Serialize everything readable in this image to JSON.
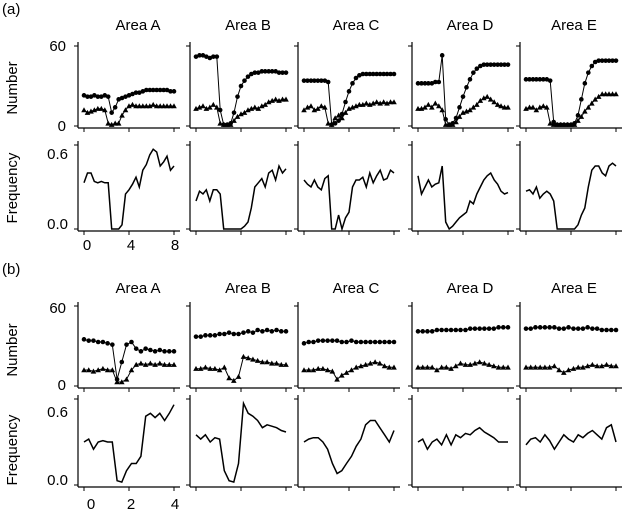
{
  "figure": {
    "panel_labels": [
      "(a)",
      "(b)"
    ],
    "areas": [
      "Area A",
      "Area B",
      "Area C",
      "Area D",
      "Area E"
    ],
    "ylabel_number": "Number",
    "ylabel_frequency": "Frequency",
    "number_ticks": [
      "60",
      "0"
    ],
    "frequency_ticks": [
      "0.6",
      "0.0"
    ],
    "x_ticks_a": [
      "0",
      "4",
      "8"
    ],
    "x_ticks_b": [
      "0",
      "2",
      "4"
    ],
    "line_color": "#000000"
  },
  "chart_data": [
    {
      "type": "line",
      "panel": "(a)",
      "row": "Number",
      "xlim": [
        0,
        8
      ],
      "ylim": [
        0,
        60
      ],
      "x": [
        0,
        0.31,
        0.62,
        0.92,
        1.23,
        1.54,
        1.85,
        2.15,
        2.46,
        2.77,
        3.08,
        3.38,
        3.69,
        4.0,
        4.31,
        4.62,
        4.92,
        5.23,
        5.54,
        5.85,
        6.15,
        6.46,
        6.77,
        7.08,
        7.38,
        7.69,
        8.0
      ],
      "panels": [
        {
          "area": "Area A",
          "series": [
            {
              "marker": "circle",
              "values": [
                23,
                22,
                22,
                23,
                22,
                22,
                23,
                22,
                10,
                14,
                20,
                21,
                22,
                23,
                24,
                25,
                25,
                26,
                27,
                27,
                27,
                27,
                27,
                27,
                27,
                26,
                26
              ]
            },
            {
              "marker": "triangle",
              "values": [
                12,
                10,
                11,
                12,
                13,
                13,
                12,
                2,
                1,
                2,
                2,
                8,
                12,
                15,
                16,
                15,
                15,
                15,
                15,
                15,
                16,
                15,
                15,
                15,
                15,
                15,
                15
              ]
            }
          ]
        },
        {
          "area": "Area B",
          "series": [
            {
              "marker": "circle",
              "values": [
                52,
                53,
                53,
                52,
                51,
                52,
                52,
                12,
                1,
                1,
                2,
                10,
                22,
                30,
                34,
                37,
                39,
                40,
                40,
                41,
                41,
                41,
                41,
                41,
                40,
                40,
                40
              ]
            },
            {
              "marker": "triangle",
              "values": [
                13,
                14,
                15,
                13,
                14,
                16,
                14,
                2,
                1,
                1,
                1,
                4,
                7,
                9,
                10,
                12,
                13,
                14,
                13,
                15,
                16,
                18,
                19,
                20,
                19,
                20,
                20
              ]
            }
          ]
        },
        {
          "area": "Area C",
          "series": [
            {
              "marker": "circle",
              "values": [
                34,
                34,
                34,
                34,
                34,
                34,
                34,
                33,
                1,
                2,
                4,
                9,
                18,
                26,
                32,
                36,
                38,
                39,
                39,
                39,
                39,
                39,
                39,
                39,
                39,
                39,
                39
              ]
            },
            {
              "marker": "triangle",
              "values": [
                12,
                14,
                15,
                12,
                13,
                15,
                14,
                2,
                1,
                6,
                8,
                6,
                10,
                13,
                14,
                15,
                16,
                16,
                17,
                16,
                17,
                18,
                17,
                18,
                17,
                18,
                18
              ]
            }
          ]
        },
        {
          "area": "Area D",
          "series": [
            {
              "marker": "circle",
              "values": [
                32,
                32,
                32,
                32,
                32,
                33,
                33,
                53,
                5,
                1,
                2,
                6,
                14,
                22,
                29,
                35,
                40,
                43,
                45,
                46,
                46,
                46,
                46,
                46,
                46,
                46,
                46
              ]
            },
            {
              "marker": "triangle",
              "values": [
                13,
                13,
                14,
                16,
                14,
                17,
                15,
                12,
                1,
                1,
                1,
                3,
                7,
                10,
                11,
                12,
                14,
                16,
                19,
                21,
                22,
                20,
                18,
                16,
                15,
                14,
                14
              ]
            }
          ]
        },
        {
          "area": "Area E",
          "series": [
            {
              "marker": "circle",
              "values": [
                35,
                35,
                35,
                35,
                35,
                35,
                35,
                34,
                3,
                1,
                1,
                1,
                1,
                1,
                2,
                8,
                20,
                32,
                40,
                45,
                48,
                49,
                49,
                49,
                49,
                49,
                49
              ]
            },
            {
              "marker": "triangle",
              "values": [
                13,
                14,
                14,
                12,
                14,
                15,
                14,
                2,
                1,
                1,
                1,
                1,
                1,
                1,
                1,
                4,
                7,
                11,
                14,
                17,
                20,
                22,
                24,
                24,
                24,
                24,
                24
              ]
            }
          ]
        }
      ]
    },
    {
      "type": "line",
      "panel": "(a)",
      "row": "Frequency",
      "xlim": [
        0,
        8
      ],
      "ylim": [
        0,
        0.6
      ],
      "x": [
        0,
        0.31,
        0.62,
        0.92,
        1.23,
        1.54,
        1.85,
        2.15,
        2.46,
        2.77,
        3.08,
        3.38,
        3.69,
        4.0,
        4.31,
        4.62,
        4.92,
        5.23,
        5.54,
        5.85,
        6.15,
        6.46,
        6.77,
        7.08,
        7.38,
        7.69,
        8.0
      ],
      "panels": [
        {
          "area": "Area A",
          "values": [
            0.33,
            0.4,
            0.4,
            0.34,
            0.33,
            0.34,
            0.33,
            0.33,
            0.0,
            0.0,
            0.0,
            0.03,
            0.25,
            0.28,
            0.32,
            0.37,
            0.3,
            0.42,
            0.46,
            0.53,
            0.57,
            0.55,
            0.45,
            0.48,
            0.52,
            0.42,
            0.45
          ]
        },
        {
          "area": "Area B",
          "values": [
            0.2,
            0.27,
            0.25,
            0.28,
            0.2,
            0.28,
            0.28,
            0.25,
            0.0,
            0.0,
            0.0,
            0.0,
            0.0,
            0.0,
            0.02,
            0.05,
            0.15,
            0.3,
            0.33,
            0.36,
            0.3,
            0.4,
            0.42,
            0.35,
            0.45,
            0.4,
            0.43
          ]
        },
        {
          "area": "Area C",
          "values": [
            0.35,
            0.32,
            0.3,
            0.35,
            0.3,
            0.28,
            0.36,
            0.38,
            0.0,
            0.0,
            0.1,
            0.0,
            0.08,
            0.12,
            0.3,
            0.35,
            0.35,
            0.37,
            0.3,
            0.4,
            0.33,
            0.38,
            0.42,
            0.35,
            0.36,
            0.42,
            0.4
          ]
        },
        {
          "area": "Area D",
          "values": [
            0.38,
            0.25,
            0.3,
            0.35,
            0.3,
            0.32,
            0.33,
            0.45,
            0.05,
            0.0,
            0.02,
            0.05,
            0.08,
            0.1,
            0.12,
            0.2,
            0.18,
            0.25,
            0.3,
            0.35,
            0.38,
            0.4,
            0.35,
            0.32,
            0.27,
            0.25,
            0.26
          ]
        },
        {
          "area": "Area E",
          "values": [
            0.27,
            0.28,
            0.25,
            0.3,
            0.22,
            0.25,
            0.27,
            0.25,
            0.2,
            0.0,
            0.0,
            0.0,
            0.0,
            0.0,
            0.0,
            0.03,
            0.1,
            0.15,
            0.3,
            0.42,
            0.45,
            0.45,
            0.4,
            0.38,
            0.45,
            0.47,
            0.45
          ]
        }
      ]
    },
    {
      "type": "line",
      "panel": "(b)",
      "row": "Number",
      "xlim": [
        0,
        4
      ],
      "ylim": [
        0,
        60
      ],
      "x": [
        0,
        0.21,
        0.42,
        0.63,
        0.84,
        1.05,
        1.26,
        1.47,
        1.68,
        1.89,
        2.11,
        2.32,
        2.53,
        2.74,
        2.95,
        3.16,
        3.37,
        3.58,
        3.79,
        4.0
      ],
      "panels": [
        {
          "area": "Area A",
          "series": [
            {
              "marker": "circle",
              "values": [
                35,
                34,
                34,
                33,
                33,
                32,
                31,
                5,
                18,
                31,
                33,
                28,
                26,
                28,
                27,
                26,
                27,
                26,
                26,
                26
              ]
            },
            {
              "marker": "triangle",
              "values": [
                12,
                12,
                11,
                12,
                13,
                12,
                12,
                3,
                3,
                5,
                12,
                16,
                17,
                16,
                17,
                16,
                17,
                16,
                16,
                16
              ]
            }
          ]
        },
        {
          "area": "Area B",
          "series": [
            {
              "marker": "circle",
              "values": [
                37,
                37,
                38,
                38,
                38,
                39,
                39,
                40,
                39,
                39,
                40,
                41,
                40,
                42,
                41,
                42,
                41,
                42,
                41,
                41
              ]
            },
            {
              "marker": "triangle",
              "values": [
                13,
                13,
                14,
                13,
                13,
                12,
                14,
                6,
                4,
                7,
                22,
                21,
                20,
                19,
                18,
                18,
                17,
                17,
                16,
                16
              ]
            }
          ]
        },
        {
          "area": "Area C",
          "series": [
            {
              "marker": "circle",
              "values": [
                32,
                33,
                33,
                34,
                34,
                34,
                34,
                34,
                33,
                33,
                34,
                33,
                33,
                33,
                33,
                33,
                33,
                33,
                33,
                33
              ]
            },
            {
              "marker": "triangle",
              "values": [
                12,
                12,
                12,
                13,
                13,
                12,
                11,
                5,
                8,
                10,
                12,
                14,
                15,
                16,
                17,
                18,
                17,
                15,
                14,
                14
              ]
            }
          ]
        },
        {
          "area": "Area D",
          "series": [
            {
              "marker": "circle",
              "values": [
                41,
                41,
                41,
                41,
                42,
                42,
                42,
                42,
                42,
                42,
                42,
                43,
                43,
                43,
                43,
                43,
                43,
                44,
                44,
                44
              ]
            },
            {
              "marker": "triangle",
              "values": [
                14,
                14,
                14,
                14,
                12,
                14,
                14,
                13,
                15,
                17,
                16,
                16,
                17,
                18,
                17,
                16,
                15,
                14,
                14,
                14
              ]
            }
          ]
        },
        {
          "area": "Area E",
          "series": [
            {
              "marker": "circle",
              "values": [
                43,
                43,
                44,
                44,
                44,
                44,
                44,
                43,
                43,
                44,
                43,
                43,
                43,
                44,
                43,
                43,
                42,
                42,
                42,
                42
              ]
            },
            {
              "marker": "triangle",
              "values": [
                14,
                14,
                14,
                14,
                14,
                14,
                15,
                12,
                10,
                12,
                13,
                14,
                14,
                15,
                16,
                15,
                15,
                16,
                15,
                15
              ]
            }
          ]
        }
      ]
    },
    {
      "type": "line",
      "panel": "(b)",
      "row": "Frequency",
      "xlim": [
        0,
        4
      ],
      "ylim": [
        0,
        0.6
      ],
      "x": [
        0,
        0.21,
        0.42,
        0.63,
        0.84,
        1.05,
        1.26,
        1.47,
        1.68,
        1.89,
        2.11,
        2.32,
        2.53,
        2.74,
        2.95,
        3.16,
        3.37,
        3.58,
        3.79,
        4.0
      ],
      "panels": [
        {
          "area": "Area A",
          "values": [
            0.3,
            0.32,
            0.25,
            0.3,
            0.31,
            0.3,
            0.3,
            0.03,
            0.02,
            0.1,
            0.15,
            0.15,
            0.2,
            0.48,
            0.5,
            0.47,
            0.5,
            0.45,
            0.5,
            0.56
          ]
        },
        {
          "area": "Area B",
          "values": [
            0.35,
            0.32,
            0.35,
            0.3,
            0.33,
            0.32,
            0.1,
            0.03,
            0.02,
            0.15,
            0.57,
            0.5,
            0.48,
            0.45,
            0.4,
            0.42,
            0.41,
            0.4,
            0.38,
            0.37
          ]
        },
        {
          "area": "Area C",
          "values": [
            0.3,
            0.32,
            0.33,
            0.33,
            0.3,
            0.25,
            0.15,
            0.08,
            0.1,
            0.15,
            0.2,
            0.27,
            0.32,
            0.42,
            0.45,
            0.45,
            0.4,
            0.35,
            0.3,
            0.38
          ]
        },
        {
          "area": "Area D",
          "values": [
            0.3,
            0.32,
            0.25,
            0.3,
            0.32,
            0.28,
            0.35,
            0.28,
            0.35,
            0.33,
            0.36,
            0.35,
            0.38,
            0.4,
            0.37,
            0.35,
            0.33,
            0.3,
            0.3,
            0.3
          ]
        },
        {
          "area": "Area E",
          "values": [
            0.28,
            0.32,
            0.33,
            0.3,
            0.35,
            0.31,
            0.25,
            0.3,
            0.35,
            0.32,
            0.3,
            0.35,
            0.33,
            0.36,
            0.38,
            0.35,
            0.32,
            0.4,
            0.42,
            0.3
          ]
        }
      ]
    }
  ]
}
